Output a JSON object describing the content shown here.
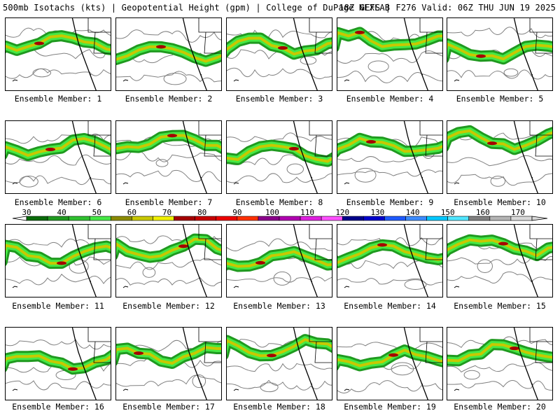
{
  "header": {
    "left": "500mb Isotachs (kts) | Geopotential Height (gpm) | College of DuPage NEXLAB",
    "right": "18Z GEFS | F276 Valid: 06Z THU JUN 19 2025"
  },
  "member_label_prefix": "Ensemble Member: ",
  "members": [
    1,
    2,
    3,
    4,
    5,
    6,
    7,
    8,
    9,
    10,
    11,
    12,
    13,
    14,
    15,
    16,
    17,
    18,
    19,
    20
  ],
  "colorbar": {
    "labels": [
      "30",
      "40",
      "50",
      "60",
      "70",
      "80",
      "90",
      "100",
      "110",
      "120",
      "130",
      "140",
      "150",
      "160",
      "170"
    ],
    "colors": [
      "#0a6b0a",
      "#1f9a1f",
      "#2fc02f",
      "#45e845",
      "#8b8b00",
      "#c8c800",
      "#f0f000",
      "#a50000",
      "#c80000",
      "#ee0000",
      "#ff3000",
      "#8b008b",
      "#b000b0",
      "#e020e0",
      "#ff50ff",
      "#00008b",
      "#0000cd",
      "#1e5aff",
      "#3c8cff",
      "#00c8ff",
      "#50e6ff",
      "#808080",
      "#b4b4b4",
      "#d8d8d8"
    ]
  },
  "map_colors": {
    "jet_weak": "#1f9a1f",
    "jet_med": "#45e845",
    "jet_strong": "#c8c800",
    "jet_core": "#a50000",
    "height_contour": "#808080",
    "coast": "#000000"
  }
}
